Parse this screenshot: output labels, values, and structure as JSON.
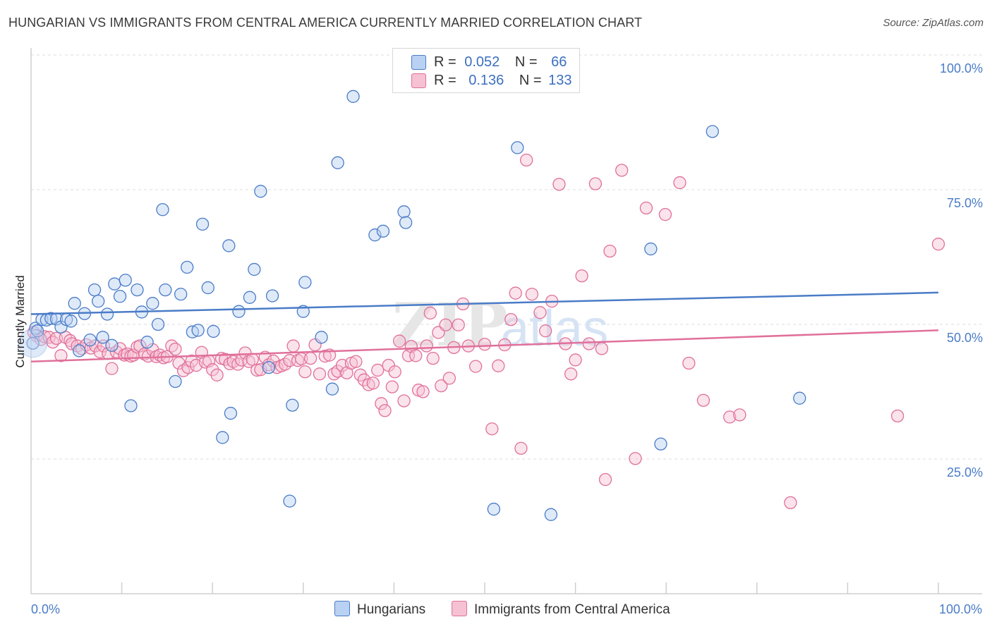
{
  "title": "HUNGARIAN VS IMMIGRANTS FROM CENTRAL AMERICA CURRENTLY MARRIED CORRELATION CHART",
  "source": "Source: ZipAtlas.com",
  "watermark": {
    "part1": "ZIP",
    "part2": "atlas"
  },
  "colors": {
    "blue": "#4a7cc7",
    "blue_fill": "#b9d1f2",
    "pink": "#e0709a",
    "pink_fill": "#f6c1d2",
    "grid": "#dcdcdc",
    "axis_label": "#4a7cc7"
  },
  "legend_top": {
    "rows": [
      {
        "r_label": "R =",
        "r_value": "0.052",
        "n_label": "N =",
        "n_value": "66"
      },
      {
        "r_label": "R =",
        "r_value": "0.136",
        "n_label": "N =",
        "n_value": "133"
      }
    ]
  },
  "legend_bottom": {
    "series1": "Hungarians",
    "series2": "Immigrants from Central America"
  },
  "chart_data": {
    "type": "scatter",
    "xlabel": "",
    "ylabel": "Currently Married",
    "xlim": [
      0,
      100
    ],
    "ylim": [
      0,
      100
    ],
    "x_tick_labels": [
      "0.0%",
      "100.0%"
    ],
    "y_tick_labels": [
      "25.0%",
      "50.0%",
      "75.0%",
      "100.0%"
    ],
    "y_ticks": [
      25,
      50,
      75,
      100
    ],
    "grid": "horizontal dashed",
    "series": [
      {
        "name": "Hungarians",
        "color": "#4a7cc7",
        "trend": {
          "start": [
            0,
            51.9
          ],
          "end": [
            100,
            55.9
          ]
        },
        "points": [
          [
            0.2,
            46.5
          ],
          [
            0.5,
            49.3
          ],
          [
            0.7,
            48.8
          ],
          [
            1.2,
            50.9
          ],
          [
            1.7,
            50.8
          ],
          [
            2.2,
            51.1
          ],
          [
            2.8,
            51.0
          ],
          [
            3.3,
            49.5
          ],
          [
            3.9,
            50.9
          ],
          [
            4.4,
            50.6
          ],
          [
            4.8,
            53.9
          ],
          [
            5.3,
            45.1
          ],
          [
            5.9,
            52.0
          ],
          [
            6.5,
            47.1
          ],
          [
            7.0,
            56.4
          ],
          [
            7.4,
            54.3
          ],
          [
            7.9,
            47.6
          ],
          [
            8.4,
            51.9
          ],
          [
            8.9,
            46.1
          ],
          [
            9.2,
            57.5
          ],
          [
            9.8,
            55.2
          ],
          [
            10.4,
            58.2
          ],
          [
            11.0,
            34.9
          ],
          [
            11.7,
            56.4
          ],
          [
            12.2,
            52.3
          ],
          [
            12.8,
            46.7
          ],
          [
            13.4,
            53.9
          ],
          [
            14.0,
            50.0
          ],
          [
            14.5,
            71.3
          ],
          [
            14.8,
            56.4
          ],
          [
            15.9,
            39.4
          ],
          [
            16.5,
            55.6
          ],
          [
            17.2,
            60.6
          ],
          [
            17.8,
            48.6
          ],
          [
            18.4,
            48.9
          ],
          [
            18.9,
            68.6
          ],
          [
            19.5,
            56.8
          ],
          [
            20.1,
            48.7
          ],
          [
            21.1,
            29.0
          ],
          [
            21.8,
            64.6
          ],
          [
            22.0,
            33.5
          ],
          [
            22.9,
            52.4
          ],
          [
            24.1,
            55.0
          ],
          [
            24.6,
            60.2
          ],
          [
            25.3,
            74.7
          ],
          [
            26.2,
            42.0
          ],
          [
            26.6,
            55.3
          ],
          [
            28.5,
            17.2
          ],
          [
            28.8,
            35.0
          ],
          [
            30.0,
            52.4
          ],
          [
            30.2,
            57.8
          ],
          [
            32.0,
            47.6
          ],
          [
            33.2,
            38.0
          ],
          [
            33.8,
            80.0
          ],
          [
            35.5,
            92.3
          ],
          [
            37.9,
            66.6
          ],
          [
            38.8,
            67.3
          ],
          [
            41.1,
            70.9
          ],
          [
            41.3,
            68.9
          ],
          [
            51.0,
            15.7
          ],
          [
            53.6,
            82.8
          ],
          [
            57.3,
            14.7
          ],
          [
            68.3,
            64.0
          ],
          [
            69.4,
            27.8
          ],
          [
            75.1,
            85.8
          ],
          [
            84.7,
            36.3
          ]
        ]
      },
      {
        "name": "Immigrants from Central America",
        "color": "#e0709a",
        "trend": {
          "start": [
            0,
            43.1
          ],
          "end": [
            100,
            48.9
          ]
        },
        "points": [
          [
            0.3,
            48.5
          ],
          [
            0.6,
            47.9
          ],
          [
            1.1,
            47.2
          ],
          [
            1.5,
            47.7
          ],
          [
            2.0,
            47.6
          ],
          [
            2.4,
            46.7
          ],
          [
            2.8,
            47.4
          ],
          [
            3.3,
            44.2
          ],
          [
            3.8,
            47.6
          ],
          [
            4.3,
            47.0
          ],
          [
            4.5,
            46.4
          ],
          [
            5.1,
            46.0
          ],
          [
            5.6,
            45.5
          ],
          [
            6.1,
            46.2
          ],
          [
            6.6,
            45.6
          ],
          [
            7.1,
            46.0
          ],
          [
            7.6,
            44.9
          ],
          [
            8.0,
            46.0
          ],
          [
            8.5,
            44.6
          ],
          [
            8.9,
            41.8
          ],
          [
            9.4,
            44.9
          ],
          [
            9.8,
            45.5
          ],
          [
            10.3,
            44.3
          ],
          [
            10.6,
            44.5
          ],
          [
            11.0,
            44.1
          ],
          [
            11.3,
            44.3
          ],
          [
            11.7,
            45.8
          ],
          [
            12.0,
            46.0
          ],
          [
            12.5,
            44.5
          ],
          [
            12.9,
            44.1
          ],
          [
            13.4,
            45.3
          ],
          [
            13.8,
            44.0
          ],
          [
            14.2,
            44.3
          ],
          [
            14.6,
            43.8
          ],
          [
            15.0,
            44.0
          ],
          [
            15.5,
            46.0
          ],
          [
            15.9,
            45.4
          ],
          [
            16.3,
            42.8
          ],
          [
            16.8,
            41.4
          ],
          [
            17.3,
            42.0
          ],
          [
            17.7,
            43.2
          ],
          [
            18.2,
            42.4
          ],
          [
            18.8,
            44.8
          ],
          [
            19.2,
            43.0
          ],
          [
            19.6,
            43.2
          ],
          [
            20.0,
            41.6
          ],
          [
            20.5,
            40.6
          ],
          [
            21.0,
            43.7
          ],
          [
            21.4,
            43.5
          ],
          [
            21.9,
            42.7
          ],
          [
            22.3,
            43.1
          ],
          [
            22.8,
            42.6
          ],
          [
            23.2,
            43.4
          ],
          [
            23.6,
            44.7
          ],
          [
            24.0,
            43.1
          ],
          [
            24.4,
            43.5
          ],
          [
            24.9,
            41.5
          ],
          [
            25.3,
            41.6
          ],
          [
            25.8,
            43.9
          ],
          [
            26.2,
            42.5
          ],
          [
            26.7,
            43.2
          ],
          [
            27.1,
            42.0
          ],
          [
            27.6,
            42.3
          ],
          [
            28.0,
            42.6
          ],
          [
            28.5,
            43.3
          ],
          [
            28.9,
            46.0
          ],
          [
            29.4,
            43.3
          ],
          [
            29.8,
            43.6
          ],
          [
            30.2,
            41.2
          ],
          [
            30.8,
            43.7
          ],
          [
            31.3,
            46.2
          ],
          [
            31.8,
            40.8
          ],
          [
            32.4,
            44.1
          ],
          [
            32.9,
            44.3
          ],
          [
            33.4,
            40.8
          ],
          [
            33.8,
            41.3
          ],
          [
            34.3,
            42.4
          ],
          [
            34.8,
            41.0
          ],
          [
            35.3,
            42.8
          ],
          [
            35.8,
            43.1
          ],
          [
            36.3,
            40.6
          ],
          [
            36.7,
            39.7
          ],
          [
            37.2,
            38.8
          ],
          [
            37.7,
            39.1
          ],
          [
            38.2,
            41.5
          ],
          [
            38.6,
            35.3
          ],
          [
            39.0,
            34.0
          ],
          [
            39.4,
            42.4
          ],
          [
            39.8,
            38.4
          ],
          [
            40.1,
            41.2
          ],
          [
            40.6,
            46.9
          ],
          [
            41.1,
            35.8
          ],
          [
            41.6,
            44.2
          ],
          [
            41.9,
            45.9
          ],
          [
            42.4,
            44.2
          ],
          [
            42.7,
            37.8
          ],
          [
            43.2,
            37.5
          ],
          [
            43.6,
            46.0
          ],
          [
            44.0,
            52.1
          ],
          [
            44.3,
            43.7
          ],
          [
            44.9,
            48.5
          ],
          [
            45.2,
            38.6
          ],
          [
            45.7,
            49.9
          ],
          [
            46.1,
            40.0
          ],
          [
            46.6,
            45.7
          ],
          [
            47.1,
            49.9
          ],
          [
            47.6,
            53.8
          ],
          [
            48.2,
            46.0
          ],
          [
            49.0,
            42.2
          ],
          [
            50.0,
            46.3
          ],
          [
            50.8,
            30.6
          ],
          [
            51.5,
            42.3
          ],
          [
            52.2,
            46.2
          ],
          [
            52.9,
            50.9
          ],
          [
            53.4,
            55.8
          ],
          [
            54.0,
            27.0
          ],
          [
            54.6,
            80.5
          ],
          [
            55.2,
            55.6
          ],
          [
            56.1,
            52.2
          ],
          [
            56.7,
            48.8
          ],
          [
            57.4,
            54.3
          ],
          [
            58.2,
            76.0
          ],
          [
            58.9,
            46.4
          ],
          [
            59.5,
            40.8
          ],
          [
            60.0,
            43.4
          ],
          [
            60.7,
            59.0
          ],
          [
            61.5,
            46.4
          ],
          [
            62.2,
            76.1
          ],
          [
            62.9,
            45.5
          ],
          [
            63.3,
            21.2
          ],
          [
            63.8,
            63.6
          ],
          [
            65.1,
            78.6
          ],
          [
            66.6,
            25.1
          ],
          [
            67.8,
            71.6
          ],
          [
            69.9,
            70.4
          ],
          [
            71.5,
            76.3
          ],
          [
            72.5,
            42.8
          ],
          [
            74.1,
            35.9
          ],
          [
            77.0,
            32.8
          ],
          [
            78.1,
            33.2
          ],
          [
            83.7,
            16.9
          ],
          [
            95.5,
            33.0
          ],
          [
            100.0,
            64.9
          ]
        ]
      }
    ]
  }
}
